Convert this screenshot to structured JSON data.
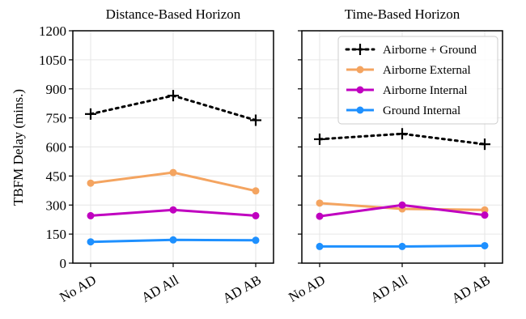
{
  "chart_data": {
    "type": "line",
    "ylabel": "TBFM Delay (mins.)",
    "ylim": [
      0,
      1200
    ],
    "yticks": [
      0,
      150,
      300,
      450,
      600,
      750,
      900,
      1050,
      1200
    ],
    "categories": [
      "No AD",
      "AD All",
      "AD AB"
    ],
    "grid": true,
    "legend_placement": "top-right of right panel",
    "panels": [
      {
        "title": "Distance-Based Horizon",
        "series": [
          {
            "name": "Airborne + Ground",
            "color": "#000000",
            "style": "dotted-plus",
            "values": [
              770,
              865,
              738
            ]
          },
          {
            "name": "Airborne External",
            "color": "#f4a460",
            "style": "solid-dot",
            "values": [
              413,
              468,
              373
            ]
          },
          {
            "name": "Airborne Internal",
            "color": "#c000c0",
            "style": "solid-dot",
            "values": [
              245,
              275,
              245
            ]
          },
          {
            "name": "Ground Internal",
            "color": "#1e90ff",
            "style": "solid-dot",
            "values": [
              110,
              120,
              118
            ]
          }
        ]
      },
      {
        "title": "Time-Based Horizon",
        "series": [
          {
            "name": "Airborne + Ground",
            "color": "#000000",
            "style": "dotted-plus",
            "values": [
              640,
              668,
              614
            ]
          },
          {
            "name": "Airborne External",
            "color": "#f4a460",
            "style": "solid-dot",
            "values": [
              310,
              280,
              275
            ]
          },
          {
            "name": "Airborne Internal",
            "color": "#c000c0",
            "style": "solid-dot",
            "values": [
              242,
              300,
              248
            ]
          },
          {
            "name": "Ground Internal",
            "color": "#1e90ff",
            "style": "solid-dot",
            "values": [
              86,
              86,
              90
            ]
          }
        ]
      }
    ]
  }
}
